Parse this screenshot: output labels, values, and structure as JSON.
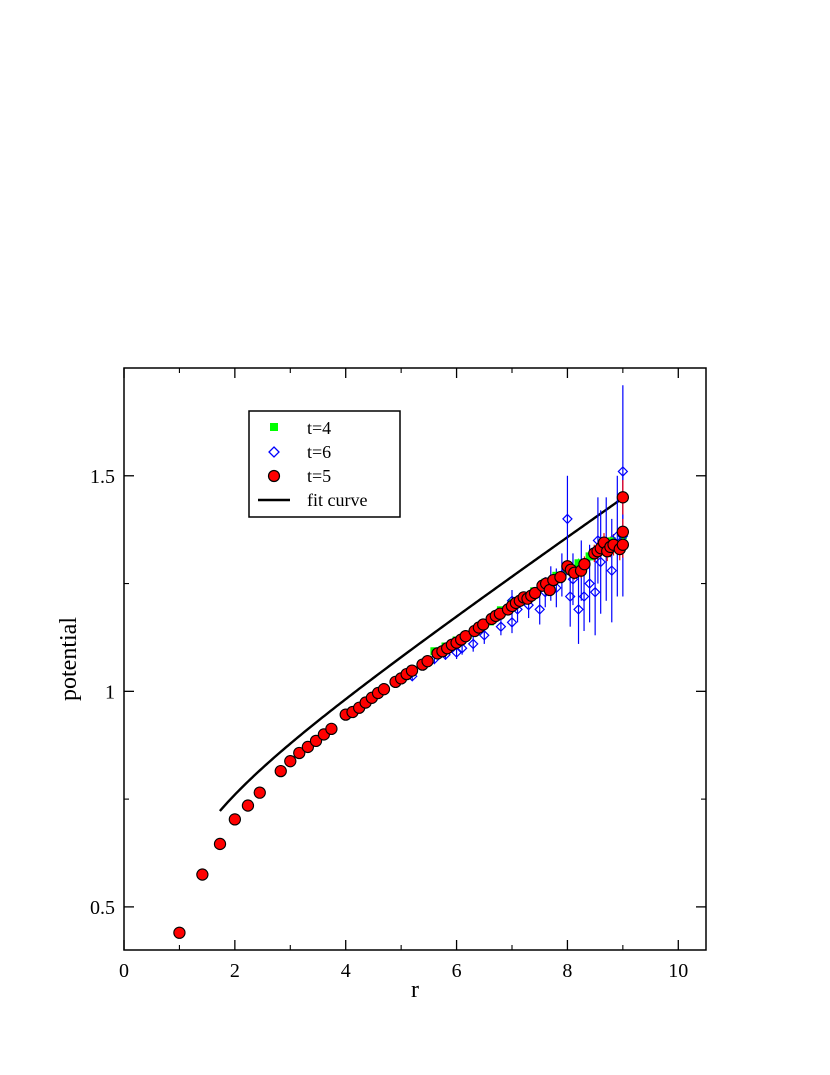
{
  "chart_data": {
    "type": "scatter",
    "xlabel": "r",
    "ylabel": "potential",
    "xlim": [
      0,
      10.5
    ],
    "ylim": [
      0.4,
      1.75
    ],
    "x_ticks": [
      0,
      2,
      4,
      6,
      8,
      10
    ],
    "x_tick_labels": [
      "0",
      "2",
      "4",
      "6",
      "8",
      "10"
    ],
    "y_ticks": [
      0.5,
      1,
      1.5
    ],
    "y_tick_labels": [
      "0.5",
      "1",
      "1.5"
    ],
    "grid": false,
    "legend_position": "top-left",
    "legend": [
      {
        "label": "t=4",
        "marker": "square",
        "color": "#00ff00"
      },
      {
        "label": "t=6",
        "marker": "diamond-open",
        "color": "#0000ff"
      },
      {
        "label": "t=5",
        "marker": "circle",
        "color": "#ff0000"
      },
      {
        "label": "fit curve",
        "marker": "line",
        "color": "#000000"
      }
    ],
    "series": [
      {
        "name": "t=4",
        "marker": "square",
        "color": "#00ff00",
        "points": [
          [
            5.6,
            1.093,
            0.004
          ],
          [
            5.8,
            1.104,
            0.004
          ],
          [
            6.0,
            1.118,
            0.005
          ],
          [
            6.2,
            1.131,
            0.005
          ],
          [
            6.4,
            1.148,
            0.005
          ],
          [
            6.6,
            1.162,
            0.006
          ],
          [
            6.7,
            1.176,
            0.006
          ],
          [
            6.8,
            1.188,
            0.006
          ],
          [
            7.0,
            1.205,
            0.007
          ],
          [
            7.2,
            1.218,
            0.007
          ],
          [
            7.4,
            1.232,
            0.008
          ],
          [
            7.6,
            1.252,
            0.008
          ],
          [
            7.8,
            1.268,
            0.009
          ],
          [
            8.0,
            1.283,
            0.01
          ],
          [
            8.2,
            1.297,
            0.011
          ],
          [
            8.4,
            1.313,
            0.012
          ],
          [
            8.6,
            1.333,
            0.013
          ],
          [
            8.8,
            1.348,
            0.015
          ],
          [
            9.0,
            1.362,
            0.016
          ]
        ]
      },
      {
        "name": "t=6",
        "marker": "diamond-open",
        "color": "#0000ff",
        "points": [
          [
            5.0,
            1.03,
            0.01
          ],
          [
            5.2,
            1.035,
            0.01
          ],
          [
            5.4,
            1.06,
            0.01
          ],
          [
            5.6,
            1.075,
            0.012
          ],
          [
            5.8,
            1.085,
            0.012
          ],
          [
            6.0,
            1.09,
            0.015
          ],
          [
            6.1,
            1.1,
            0.015
          ],
          [
            6.3,
            1.11,
            0.018
          ],
          [
            6.5,
            1.13,
            0.02
          ],
          [
            6.8,
            1.15,
            0.02
          ],
          [
            7.0,
            1.16,
            0.025
          ],
          [
            7.0,
            1.21,
            0.025
          ],
          [
            7.1,
            1.19,
            0.03
          ],
          [
            7.3,
            1.2,
            0.03
          ],
          [
            7.5,
            1.19,
            0.035
          ],
          [
            7.6,
            1.23,
            0.035
          ],
          [
            7.7,
            1.25,
            0.04
          ],
          [
            7.8,
            1.24,
            0.045
          ],
          [
            7.9,
            1.27,
            0.05
          ],
          [
            8.0,
            1.4,
            0.1
          ],
          [
            8.05,
            1.22,
            0.07
          ],
          [
            8.1,
            1.26,
            0.06
          ],
          [
            8.2,
            1.19,
            0.08
          ],
          [
            8.25,
            1.28,
            0.07
          ],
          [
            8.3,
            1.22,
            0.08
          ],
          [
            8.4,
            1.25,
            0.09
          ],
          [
            8.5,
            1.23,
            0.1
          ],
          [
            8.55,
            1.35,
            0.1
          ],
          [
            8.6,
            1.3,
            0.12
          ],
          [
            8.7,
            1.33,
            0.12
          ],
          [
            8.8,
            1.28,
            0.12
          ],
          [
            8.9,
            1.36,
            0.14
          ],
          [
            9.0,
            1.51,
            0.2
          ],
          [
            9.0,
            1.36,
            0.14
          ]
        ]
      },
      {
        "name": "t=5",
        "marker": "circle",
        "color": "#ff0000",
        "points": [
          [
            1.0,
            0.44,
            0.003
          ],
          [
            1.414,
            0.575,
            0.003
          ],
          [
            1.732,
            0.646,
            0.003
          ],
          [
            2.0,
            0.703,
            0.003
          ],
          [
            2.236,
            0.735,
            0.003
          ],
          [
            2.449,
            0.765,
            0.003
          ],
          [
            2.828,
            0.815,
            0.003
          ],
          [
            3.0,
            0.838,
            0.003
          ],
          [
            3.162,
            0.857,
            0.003
          ],
          [
            3.317,
            0.871,
            0.003
          ],
          [
            3.464,
            0.885,
            0.003
          ],
          [
            3.606,
            0.9,
            0.003
          ],
          [
            3.742,
            0.913,
            0.003
          ],
          [
            4.0,
            0.946,
            0.003
          ],
          [
            4.123,
            0.952,
            0.003
          ],
          [
            4.243,
            0.962,
            0.003
          ],
          [
            4.359,
            0.974,
            0.003
          ],
          [
            4.472,
            0.985,
            0.003
          ],
          [
            4.583,
            0.996,
            0.003
          ],
          [
            4.69,
            1.005,
            0.003
          ],
          [
            4.899,
            1.022,
            0.004
          ],
          [
            5.0,
            1.03,
            0.004
          ],
          [
            5.099,
            1.04,
            0.004
          ],
          [
            5.196,
            1.048,
            0.004
          ],
          [
            5.385,
            1.062,
            0.004
          ],
          [
            5.477,
            1.07,
            0.004
          ],
          [
            5.657,
            1.088,
            0.005
          ],
          [
            5.745,
            1.093,
            0.005
          ],
          [
            5.831,
            1.1,
            0.005
          ],
          [
            5.916,
            1.108,
            0.005
          ],
          [
            6.0,
            1.113,
            0.005
          ],
          [
            6.083,
            1.12,
            0.005
          ],
          [
            6.164,
            1.128,
            0.006
          ],
          [
            6.325,
            1.14,
            0.006
          ],
          [
            6.403,
            1.148,
            0.006
          ],
          [
            6.481,
            1.155,
            0.006
          ],
          [
            6.633,
            1.168,
            0.007
          ],
          [
            6.708,
            1.175,
            0.007
          ],
          [
            6.782,
            1.18,
            0.007
          ],
          [
            6.928,
            1.19,
            0.008
          ],
          [
            7.0,
            1.198,
            0.008
          ],
          [
            7.071,
            1.205,
            0.008
          ],
          [
            7.141,
            1.21,
            0.009
          ],
          [
            7.211,
            1.218,
            0.009
          ],
          [
            7.28,
            1.215,
            0.009
          ],
          [
            7.348,
            1.222,
            0.01
          ],
          [
            7.416,
            1.228,
            0.01
          ],
          [
            7.55,
            1.245,
            0.011
          ],
          [
            7.616,
            1.25,
            0.011
          ],
          [
            7.681,
            1.235,
            0.012
          ],
          [
            7.746,
            1.258,
            0.012
          ],
          [
            7.874,
            1.265,
            0.013
          ],
          [
            8.0,
            1.29,
            0.015
          ],
          [
            8.062,
            1.282,
            0.015
          ],
          [
            8.124,
            1.275,
            0.016
          ],
          [
            8.246,
            1.28,
            0.017
          ],
          [
            8.307,
            1.295,
            0.018
          ],
          [
            8.485,
            1.32,
            0.02
          ],
          [
            8.544,
            1.325,
            0.02
          ],
          [
            8.602,
            1.332,
            0.021
          ],
          [
            8.66,
            1.345,
            0.022
          ],
          [
            8.718,
            1.325,
            0.023
          ],
          [
            8.775,
            1.335,
            0.024
          ],
          [
            8.832,
            1.34,
            0.025
          ],
          [
            8.944,
            1.33,
            0.026
          ],
          [
            9.0,
            1.45,
            0.04
          ],
          [
            9.0,
            1.37,
            0.03
          ],
          [
            9.0,
            1.34,
            0.03
          ]
        ]
      }
    ],
    "fit_curve": {
      "name": "fit curve",
      "color": "#000000",
      "x_range": [
        1.73,
        9.0
      ],
      "formula": "V(r) = 0.6737 + 0.0883*r - 0.18/r"
    }
  }
}
